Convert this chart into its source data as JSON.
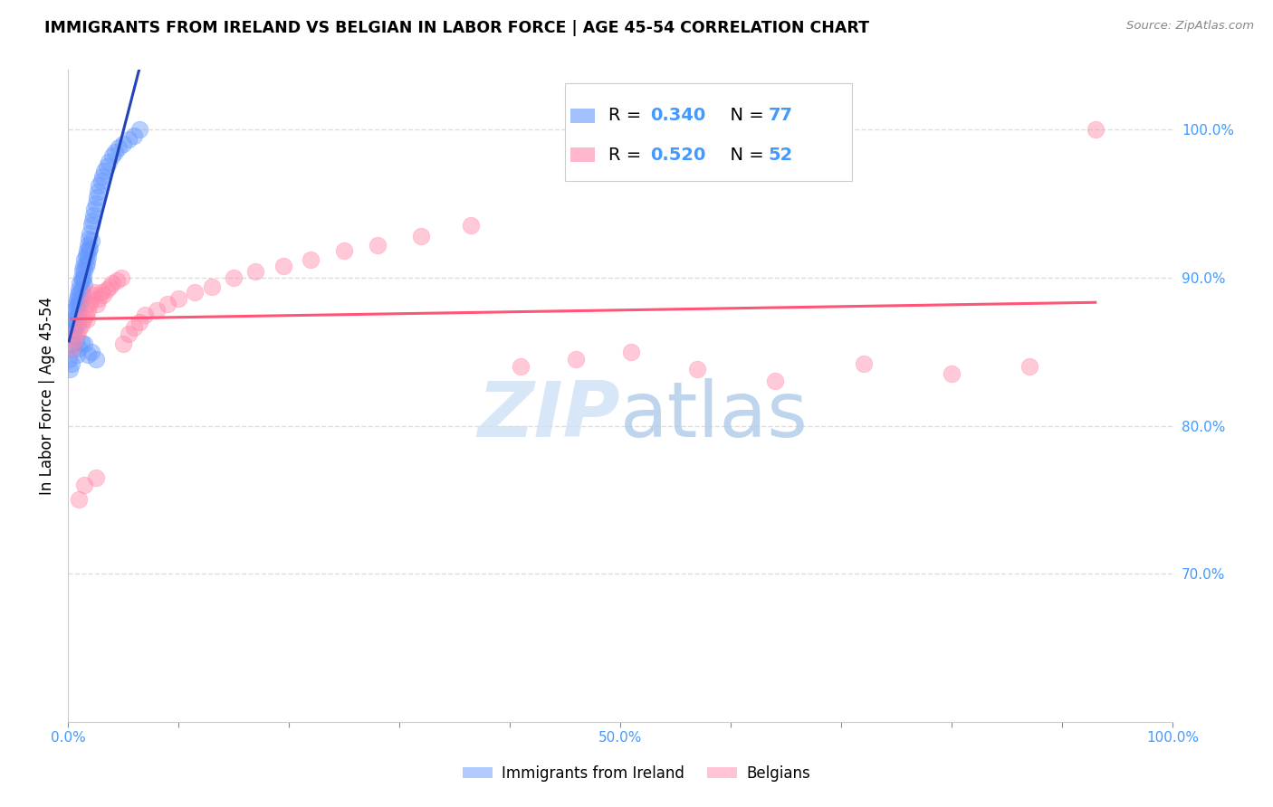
{
  "title": "IMMIGRANTS FROM IRELAND VS BELGIAN IN LABOR FORCE | AGE 45-54 CORRELATION CHART",
  "source": "Source: ZipAtlas.com",
  "ylabel": "In Labor Force | Age 45-54",
  "xlim": [
    0.0,
    1.0
  ],
  "ylim": [
    0.6,
    1.04
  ],
  "y_ticks_right": [
    0.7,
    0.8,
    0.9,
    1.0
  ],
  "y_tick_labels_right": [
    "70.0%",
    "80.0%",
    "90.0%",
    "100.0%"
  ],
  "ireland_R": 0.34,
  "ireland_N": 77,
  "belgian_R": 0.52,
  "belgian_N": 52,
  "ireland_color": "#6699ff",
  "belgian_color": "#ff88aa",
  "ireland_line_color": "#2244bb",
  "belgian_line_color": "#ff5577",
  "legend_label_ireland": "Immigrants from Ireland",
  "legend_label_belgian": "Belgians",
  "watermark_zip": "ZIP",
  "watermark_atlas": "atlas",
  "background_color": "#ffffff",
  "grid_color": "#dddddd",
  "ireland_x": [
    0.002,
    0.003,
    0.004,
    0.004,
    0.005,
    0.005,
    0.006,
    0.006,
    0.006,
    0.007,
    0.007,
    0.007,
    0.007,
    0.008,
    0.008,
    0.009,
    0.009,
    0.009,
    0.009,
    0.01,
    0.01,
    0.01,
    0.011,
    0.011,
    0.011,
    0.012,
    0.012,
    0.012,
    0.013,
    0.013,
    0.013,
    0.014,
    0.014,
    0.015,
    0.015,
    0.015,
    0.016,
    0.016,
    0.017,
    0.017,
    0.018,
    0.018,
    0.019,
    0.019,
    0.02,
    0.02,
    0.021,
    0.021,
    0.022,
    0.023,
    0.024,
    0.025,
    0.026,
    0.027,
    0.028,
    0.03,
    0.031,
    0.033,
    0.035,
    0.037,
    0.04,
    0.043,
    0.046,
    0.05,
    0.055,
    0.06,
    0.065,
    0.001,
    0.002,
    0.003,
    0.008,
    0.01,
    0.012,
    0.015,
    0.018,
    0.021,
    0.025
  ],
  "ireland_y": [
    0.86,
    0.855,
    0.868,
    0.852,
    0.872,
    0.865,
    0.878,
    0.872,
    0.865,
    0.882,
    0.876,
    0.87,
    0.858,
    0.885,
    0.88,
    0.888,
    0.882,
    0.875,
    0.868,
    0.892,
    0.886,
    0.878,
    0.896,
    0.89,
    0.882,
    0.9,
    0.892,
    0.885,
    0.905,
    0.898,
    0.888,
    0.908,
    0.9,
    0.912,
    0.905,
    0.895,
    0.915,
    0.908,
    0.918,
    0.91,
    0.922,
    0.914,
    0.926,
    0.918,
    0.93,
    0.92,
    0.935,
    0.925,
    0.938,
    0.942,
    0.946,
    0.95,
    0.954,
    0.958,
    0.962,
    0.965,
    0.968,
    0.972,
    0.975,
    0.978,
    0.982,
    0.985,
    0.988,
    0.99,
    0.993,
    0.996,
    1.0,
    0.845,
    0.838,
    0.842,
    0.848,
    0.852,
    0.856,
    0.855,
    0.848,
    0.85,
    0.845
  ],
  "belgian_x": [
    0.003,
    0.006,
    0.008,
    0.01,
    0.012,
    0.014,
    0.016,
    0.017,
    0.018,
    0.02,
    0.021,
    0.022,
    0.024,
    0.026,
    0.028,
    0.03,
    0.032,
    0.035,
    0.038,
    0.04,
    0.044,
    0.048,
    0.05,
    0.055,
    0.06,
    0.065,
    0.07,
    0.08,
    0.09,
    0.1,
    0.115,
    0.13,
    0.15,
    0.17,
    0.195,
    0.22,
    0.25,
    0.28,
    0.32,
    0.365,
    0.41,
    0.46,
    0.51,
    0.57,
    0.64,
    0.72,
    0.8,
    0.87,
    0.01,
    0.015,
    0.025,
    0.93
  ],
  "belgian_y": [
    0.852,
    0.858,
    0.862,
    0.865,
    0.868,
    0.872,
    0.875,
    0.872,
    0.878,
    0.882,
    0.885,
    0.888,
    0.89,
    0.882,
    0.886,
    0.89,
    0.888,
    0.892,
    0.894,
    0.896,
    0.898,
    0.9,
    0.855,
    0.862,
    0.866,
    0.87,
    0.875,
    0.878,
    0.882,
    0.886,
    0.89,
    0.894,
    0.9,
    0.904,
    0.908,
    0.912,
    0.918,
    0.922,
    0.928,
    0.935,
    0.84,
    0.845,
    0.85,
    0.838,
    0.83,
    0.842,
    0.835,
    0.84,
    0.75,
    0.76,
    0.765,
    1.0
  ]
}
